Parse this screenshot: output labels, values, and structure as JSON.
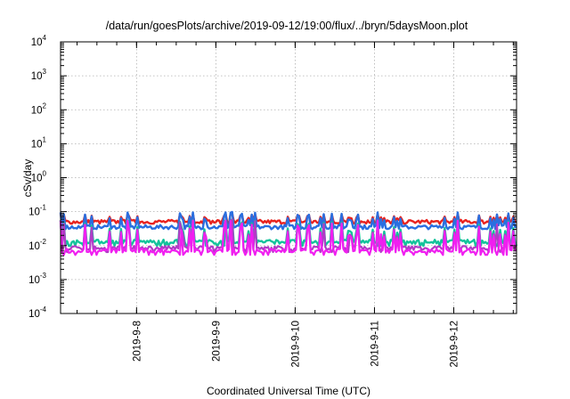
{
  "chart_data": {
    "type": "line",
    "title": "/data/run/goesPlots/archive/2019-09-12/19:00/flux/../bryn/5daysMoon.plot",
    "xlabel": "Coordinated Universal Time (UTC)",
    "ylabel": "cSv/day",
    "x_range": [
      "2019-09-07T01:00",
      "2019-09-12T19:00"
    ],
    "ylim": [
      0.0001,
      10000
    ],
    "yscale": "log",
    "grid": true,
    "legend": "none",
    "y_ticks": [
      {
        "base": "10",
        "exp": "-4"
      },
      {
        "base": "10",
        "exp": "-3"
      },
      {
        "base": "10",
        "exp": "-2"
      },
      {
        "base": "10",
        "exp": "-1"
      },
      {
        "base": "10",
        "exp": "0"
      },
      {
        "base": "10",
        "exp": "1"
      },
      {
        "base": "10",
        "exp": "2"
      },
      {
        "base": "10",
        "exp": "3"
      },
      {
        "base": "10",
        "exp": "4"
      }
    ],
    "x_ticks": [
      "2019-9-8",
      "2019-9-9",
      "2019-9-10",
      "2019-9-11",
      "2019-9-12"
    ],
    "series": [
      {
        "color": "#e8231f",
        "baseline": 0.05,
        "spike_to": 0.09
      },
      {
        "color": "#2a6fe0",
        "baseline": 0.035,
        "spike_to": 0.1
      },
      {
        "color": "#13c39b",
        "baseline": 0.013,
        "spike_to": 0.06
      },
      {
        "color": "#b23bc6",
        "baseline": 0.0085,
        "spike_to": 0.06
      },
      {
        "color": "#f01ff0",
        "baseline": 0.007,
        "spike_to": 0.06
      }
    ]
  }
}
